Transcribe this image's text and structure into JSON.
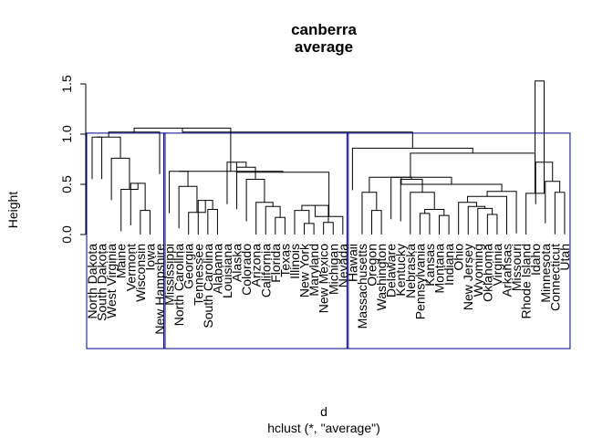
{
  "chart_data": {
    "type": "dendrogram",
    "title": "canberra",
    "subtitle": "average",
    "xlabel": "d",
    "sublabel": "hclust (*, \"average\")",
    "ylabel": "Height",
    "ylim": [
      0,
      1.55
    ],
    "yticks": [
      0.0,
      0.5,
      1.0,
      1.5
    ],
    "ytick_labels": [
      "0.0",
      "0.5",
      "1.0",
      "1.5"
    ],
    "cluster_box_color": "#00008B",
    "line_color": "#000000",
    "leaves": [
      "North Dakota",
      "South Dakota",
      "West Virginia",
      "Maine",
      "Vermont",
      "Wisconsin",
      "Iowa",
      "New Hampshire",
      "Mississippi",
      "North Carolina",
      "Georgia",
      "Tennessee",
      "South Carolina",
      "Alabama",
      "Louisiana",
      "Alaska",
      "Colorado",
      "Arizona",
      "California",
      "Florida",
      "Texas",
      "Illinois",
      "New York",
      "Maryland",
      "New Mexico",
      "Michigan",
      "Nevada",
      "Hawaii",
      "Massachusetts",
      "Oregon",
      "Washington",
      "Delaware",
      "Kentucky",
      "Nebraska",
      "Pennsylvania",
      "Kansas",
      "Montana",
      "Indiana",
      "Ohio",
      "New Jersey",
      "Wyoming",
      "Oklahoma",
      "Virginia",
      "Arkansas",
      "Missouri",
      "Rhode Island",
      "Idaho",
      "Minnesota",
      "Connecticut",
      "Utah"
    ],
    "merges": [
      [
        0,
        1,
        0.97
      ],
      [
        5,
        6,
        0.24
      ],
      [
        4,
        51,
        0.51
      ],
      [
        3,
        52,
        0.45
      ],
      [
        2,
        53,
        0.76
      ],
      [
        50,
        54,
        0.97
      ],
      [
        12,
        13,
        0.25
      ],
      [
        11,
        56,
        0.34
      ],
      [
        10,
        57,
        0.22
      ],
      [
        9,
        58,
        0.48
      ],
      [
        8,
        59,
        0.63
      ],
      [
        19,
        20,
        0.17
      ],
      [
        18,
        61,
        0.28
      ],
      [
        17,
        62,
        0.32
      ],
      [
        16,
        63,
        0.55
      ],
      [
        15,
        64,
        0.67
      ],
      [
        14,
        65,
        0.72
      ],
      [
        22,
        23,
        0.11
      ],
      [
        21,
        67,
        0.24
      ],
      [
        24,
        25,
        0.12
      ],
      [
        68,
        69,
        0.29
      ],
      [
        70,
        26,
        0.18
      ],
      [
        66,
        71,
        0.62
      ],
      [
        60,
        72,
        0.63
      ],
      [
        55,
        7,
        1.02
      ],
      [
        73,
        74,
        1.06
      ],
      [
        29,
        30,
        0.24
      ],
      [
        28,
        76,
        0.42
      ],
      [
        34,
        35,
        0.21
      ],
      [
        36,
        37,
        0.19
      ],
      [
        78,
        79,
        0.25
      ],
      [
        33,
        80,
        0.42
      ],
      [
        32,
        81,
        0.55
      ],
      [
        31,
        82,
        0.57
      ],
      [
        41,
        42,
        0.2
      ],
      [
        40,
        84,
        0.26
      ],
      [
        39,
        85,
        0.28
      ],
      [
        38,
        86,
        0.32
      ],
      [
        87,
        43,
        0.38
      ],
      [
        44,
        88,
        0.43
      ],
      [
        83,
        89,
        0.5
      ],
      [
        77,
        90,
        0.57
      ],
      [
        48,
        49,
        0.42
      ],
      [
        47,
        92,
        0.53
      ],
      [
        46,
        93,
        0.72
      ],
      [
        45,
        94,
        0.41
      ],
      [
        91,
        95,
        0.81
      ],
      [
        27,
        96,
        0.86
      ],
      [
        75,
        97,
        1.02
      ],
      [
        94,
        95,
        1.53
      ]
    ],
    "cluster_boxes": [
      {
        "from": "North Dakota",
        "to": "New Hampshire"
      },
      {
        "from": "Mississippi",
        "to": "Nevada"
      },
      {
        "from": "Hawaii",
        "to": "Utah"
      }
    ]
  }
}
